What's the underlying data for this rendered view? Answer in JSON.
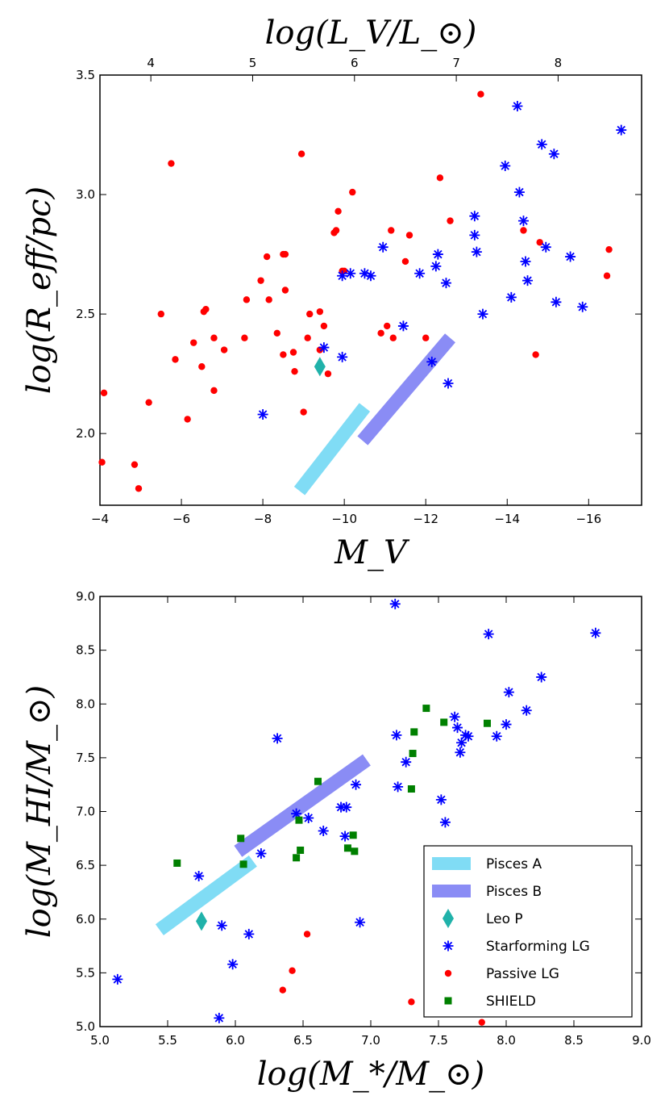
{
  "chart_data": [
    {
      "type": "scatter",
      "panel": "top",
      "xlabel": "M_V",
      "ylabel": "log(R_eff/pc)",
      "top_xlabel": "log(L_V/L_⊙)",
      "xlim": [
        -4,
        -17.3
      ],
      "ylim": [
        1.7,
        3.5
      ],
      "xticks": [
        -4,
        -6,
        -8,
        -10,
        -12,
        -14,
        -16
      ],
      "xtick_labels": [
        "−4",
        "−6",
        "−8",
        "−10",
        "−12",
        "−14",
        "−16"
      ],
      "yticks": [
        2.0,
        2.5,
        3.0,
        3.5
      ],
      "ytick_labels": [
        "2.0",
        "2.5",
        "3.0",
        "3.5"
      ],
      "top_ticks": [
        4,
        5,
        6,
        7,
        8
      ],
      "top_tick_labels": [
        "4",
        "5",
        "6",
        "7",
        "8"
      ],
      "series": [
        {
          "name": "Passive LG",
          "marker": "circle",
          "color": "#ff0000",
          "x": [
            -4.05,
            -4.1,
            -4.85,
            -4.95,
            -5.2,
            -5.5,
            -5.75,
            -5.85,
            -6.15,
            -6.3,
            -6.5,
            -6.55,
            -6.6,
            -6.8,
            -6.8,
            -7.05,
            -7.55,
            -7.6,
            -7.95,
            -8.1,
            -8.15,
            -8.35,
            -8.5,
            -8.5,
            -8.55,
            -8.55,
            -8.75,
            -8.78,
            -8.95,
            -9.0,
            -9.1,
            -9.15,
            -9.4,
            -9.4,
            -9.5,
            -9.6,
            -9.75,
            -9.8,
            -9.85,
            -9.95,
            -10.0,
            -10.2,
            -10.9,
            -11.05,
            -11.15,
            -11.2,
            -11.5,
            -11.6,
            -12.0,
            -12.35,
            -12.6,
            -13.35,
            -14.4,
            -14.7,
            -14.8,
            -16.45,
            -16.5
          ],
          "y": [
            1.88,
            2.17,
            1.87,
            1.77,
            2.13,
            2.5,
            3.13,
            2.31,
            2.06,
            2.38,
            2.28,
            2.51,
            2.52,
            2.4,
            2.18,
            2.35,
            2.4,
            2.56,
            2.64,
            2.74,
            2.56,
            2.42,
            2.33,
            2.75,
            2.6,
            2.75,
            2.34,
            2.26,
            3.17,
            2.09,
            2.4,
            2.5,
            2.35,
            2.51,
            2.45,
            2.25,
            2.84,
            2.85,
            2.93,
            2.68,
            2.68,
            3.01,
            2.42,
            2.45,
            2.85,
            2.4,
            2.72,
            2.83,
            2.4,
            3.07,
            2.89,
            3.42,
            2.85,
            2.33,
            2.8,
            2.66,
            2.77
          ]
        },
        {
          "name": "Starforming LG",
          "marker": "asterisk",
          "color": "#0000ff",
          "x": [
            -8.0,
            -9.5,
            -9.95,
            -9.95,
            -10.15,
            -10.5,
            -10.65,
            -10.95,
            -11.45,
            -11.85,
            -12.15,
            -12.25,
            -12.3,
            -12.5,
            -12.55,
            -13.2,
            -13.2,
            -13.25,
            -13.4,
            -13.95,
            -14.1,
            -14.25,
            -14.3,
            -14.4,
            -14.45,
            -14.5,
            -14.85,
            -14.95,
            -15.15,
            -15.2,
            -15.55,
            -15.85,
            -16.8
          ],
          "y": [
            2.08,
            2.36,
            2.32,
            2.66,
            2.67,
            2.67,
            2.66,
            2.78,
            2.45,
            2.67,
            2.3,
            2.7,
            2.75,
            2.63,
            2.21,
            2.91,
            2.83,
            2.76,
            2.5,
            3.12,
            2.57,
            3.37,
            3.01,
            2.89,
            2.72,
            2.64,
            3.21,
            2.78,
            3.17,
            2.55,
            2.74,
            2.53,
            3.27
          ]
        },
        {
          "name": "Leo P",
          "marker": "diamond",
          "color": "#20b2aa",
          "x": [
            -9.4
          ],
          "y": [
            2.28
          ]
        }
      ],
      "bands": [
        {
          "name": "Pisces A",
          "color": "#80dcf5",
          "x": [
            -8.9,
            -10.5
          ],
          "y": [
            1.76,
            2.11
          ]
        },
        {
          "name": "Pisces B",
          "color": "#8a8cf5",
          "x": [
            -10.45,
            -12.6
          ],
          "y": [
            1.97,
            2.4
          ]
        }
      ]
    },
    {
      "type": "scatter",
      "panel": "bottom",
      "xlabel": "log(M_*/M_⊙)",
      "ylabel": "log(M_HI/M_⊙)",
      "xlim": [
        5.0,
        9.0
      ],
      "ylim": [
        5.0,
        9.0
      ],
      "xticks": [
        5.0,
        5.5,
        6.0,
        6.5,
        7.0,
        7.5,
        8.0,
        8.5,
        9.0
      ],
      "xtick_labels": [
        "5.0",
        "5.5",
        "6.0",
        "6.5",
        "7.0",
        "7.5",
        "8.0",
        "8.5",
        "9.0"
      ],
      "yticks": [
        5.0,
        5.5,
        6.0,
        6.5,
        7.0,
        7.5,
        8.0,
        8.5,
        9.0
      ],
      "ytick_labels": [
        "5.0",
        "5.5",
        "6.0",
        "6.5",
        "7.0",
        "7.5",
        "8.0",
        "8.5",
        "9.0"
      ],
      "series": [
        {
          "name": "Passive LG",
          "marker": "circle",
          "color": "#ff0000",
          "x": [
            6.35,
            6.42,
            6.53,
            7.3,
            7.82
          ],
          "y": [
            5.34,
            5.52,
            5.86,
            5.23,
            5.04
          ]
        },
        {
          "name": "Starforming LG",
          "marker": "asterisk",
          "color": "#0000ff",
          "x": [
            5.13,
            5.73,
            5.88,
            5.9,
            5.98,
            6.1,
            6.19,
            6.31,
            6.45,
            6.54,
            6.65,
            6.78,
            6.81,
            6.82,
            6.89,
            6.92,
            7.18,
            7.19,
            7.2,
            7.26,
            7.52,
            7.55,
            7.62,
            7.64,
            7.66,
            7.67,
            7.7,
            7.72,
            7.87,
            7.93,
            8.0,
            8.02,
            8.15,
            8.26,
            8.66
          ],
          "y": [
            5.44,
            6.4,
            5.08,
            5.94,
            5.58,
            5.86,
            6.61,
            7.68,
            6.98,
            6.94,
            6.82,
            7.04,
            6.77,
            7.04,
            7.25,
            5.97,
            8.93,
            7.71,
            7.23,
            7.46,
            7.11,
            6.9,
            7.88,
            7.78,
            7.55,
            7.64,
            7.71,
            7.7,
            8.65,
            7.7,
            7.81,
            8.11,
            7.94,
            8.25,
            8.66
          ]
        },
        {
          "name": "SHIELD",
          "marker": "square",
          "color": "#008000",
          "x": [
            5.57,
            6.04,
            6.06,
            6.45,
            6.47,
            6.48,
            6.61,
            6.83,
            6.87,
            6.88,
            7.3,
            7.31,
            7.32,
            7.41,
            7.54,
            7.86
          ],
          "y": [
            6.52,
            6.75,
            6.51,
            6.57,
            6.92,
            6.64,
            7.28,
            6.66,
            6.78,
            6.63,
            7.21,
            7.54,
            7.74,
            7.96,
            7.83,
            7.82
          ]
        },
        {
          "name": "Leo P",
          "marker": "diamond",
          "color": "#20b2aa",
          "x": [
            5.75
          ],
          "y": [
            5.98
          ]
        }
      ],
      "bands": [
        {
          "name": "Pisces A",
          "color": "#80dcf5",
          "x": [
            5.44,
            6.13
          ],
          "y": [
            5.9,
            6.54
          ]
        },
        {
          "name": "Pisces B",
          "color": "#8a8cf5",
          "x": [
            6.02,
            6.97
          ],
          "y": [
            6.63,
            7.48
          ]
        }
      ],
      "legend": {
        "position": "lower-right",
        "entries": [
          {
            "label": "Pisces A",
            "marker": "band",
            "color": "#80dcf5"
          },
          {
            "label": "Pisces B",
            "marker": "band",
            "color": "#8a8cf5"
          },
          {
            "label": "Leo P",
            "marker": "diamond",
            "color": "#20b2aa"
          },
          {
            "label": "Starforming LG",
            "marker": "asterisk",
            "color": "#0000ff"
          },
          {
            "label": "Passive LG",
            "marker": "circle",
            "color": "#ff0000"
          },
          {
            "label": "SHIELD",
            "marker": "square",
            "color": "#008000"
          }
        ]
      }
    }
  ]
}
